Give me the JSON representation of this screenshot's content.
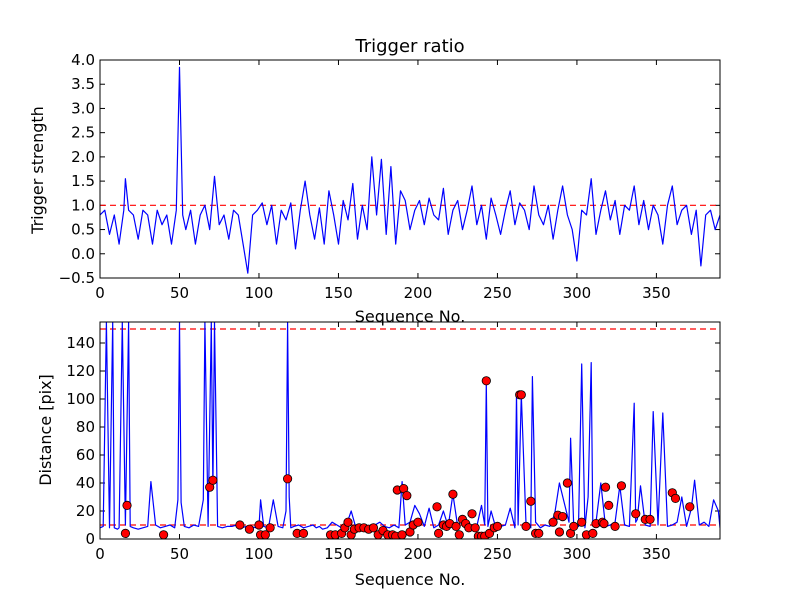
{
  "chart_data": [
    {
      "type": "line",
      "title": "Trigger ratio",
      "xlabel": "Sequence No.",
      "ylabel": "Trigger strength",
      "xlim": [
        0,
        390
      ],
      "ylim": [
        -0.5,
        4.0
      ],
      "xticks": [
        0,
        50,
        100,
        150,
        200,
        250,
        300,
        350
      ],
      "yticks": [
        -0.5,
        0.0,
        0.5,
        1.0,
        1.5,
        2.0,
        2.5,
        3.0,
        3.5,
        4.0
      ],
      "ytick_labels": [
        "−0.5",
        "0.0",
        "0.5",
        "1.0",
        "1.5",
        "2.0",
        "2.5",
        "3.0",
        "3.5",
        "4.0"
      ],
      "colors": {
        "line": "#0000ff",
        "threshold": "#ff0000"
      },
      "threshold": 1.0,
      "series": [
        {
          "name": "trigger strength",
          "x": [
            0,
            3,
            6,
            9,
            12,
            15,
            16,
            18,
            21,
            24,
            27,
            30,
            33,
            36,
            39,
            42,
            45,
            48,
            50,
            52,
            54,
            57,
            60,
            63,
            66,
            69,
            72,
            75,
            78,
            81,
            84,
            87,
            90,
            93,
            96,
            99,
            102,
            105,
            108,
            111,
            114,
            117,
            120,
            123,
            126,
            129,
            132,
            135,
            138,
            141,
            144,
            147,
            150,
            153,
            156,
            159,
            162,
            165,
            168,
            171,
            174,
            177,
            180,
            183,
            186,
            189,
            192,
            195,
            198,
            201,
            204,
            207,
            210,
            213,
            216,
            219,
            222,
            225,
            228,
            231,
            234,
            237,
            240,
            243,
            246,
            249,
            252,
            255,
            258,
            261,
            264,
            267,
            270,
            273,
            276,
            279,
            282,
            285,
            288,
            291,
            294,
            297,
            300,
            303,
            306,
            309,
            312,
            315,
            318,
            321,
            324,
            327,
            330,
            333,
            336,
            339,
            342,
            345,
            348,
            351,
            354,
            357,
            360,
            363,
            366,
            369,
            372,
            375,
            378,
            381,
            384,
            387,
            390
          ],
          "y": [
            0.8,
            0.9,
            0.4,
            0.8,
            0.2,
            0.9,
            1.55,
            0.9,
            0.8,
            0.3,
            0.9,
            0.8,
            0.2,
            0.9,
            0.6,
            0.8,
            0.2,
            0.9,
            3.85,
            0.8,
            0.5,
            0.9,
            0.2,
            0.8,
            1.0,
            0.5,
            1.6,
            0.6,
            0.8,
            0.3,
            0.9,
            0.8,
            0.2,
            -0.4,
            0.8,
            0.9,
            1.05,
            0.6,
            1.0,
            0.2,
            0.9,
            0.7,
            1.05,
            0.1,
            0.9,
            1.5,
            0.8,
            0.3,
            0.95,
            0.2,
            1.3,
            0.8,
            0.2,
            1.1,
            0.7,
            1.45,
            0.3,
            1.0,
            0.5,
            2.0,
            0.8,
            1.95,
            0.4,
            1.8,
            0.2,
            1.3,
            1.1,
            0.5,
            0.9,
            1.1,
            0.6,
            1.15,
            0.8,
            0.7,
            1.35,
            0.4,
            0.9,
            1.1,
            0.5,
            0.9,
            1.4,
            0.6,
            1.0,
            0.3,
            1.15,
            0.8,
            0.4,
            0.9,
            1.3,
            0.6,
            1.05,
            0.9,
            0.5,
            1.4,
            0.8,
            0.6,
            1.0,
            0.3,
            0.9,
            1.4,
            0.8,
            0.5,
            -0.15,
            0.9,
            0.8,
            1.55,
            0.4,
            0.9,
            1.3,
            0.7,
            1.1,
            0.4,
            1.0,
            0.9,
            1.4,
            0.6,
            1.1,
            0.5,
            1.0,
            0.8,
            0.2,
            1.0,
            1.4,
            0.6,
            0.9,
            1.0,
            0.4,
            0.9,
            -0.25,
            0.8,
            0.9,
            0.5,
            0.8
          ]
        }
      ]
    },
    {
      "type": "line",
      "title": "",
      "xlabel": "Sequence No.",
      "ylabel": "Distance [pix]",
      "xlim": [
        0,
        390
      ],
      "ylim": [
        0,
        155
      ],
      "xticks": [
        0,
        50,
        100,
        150,
        200,
        250,
        300,
        350
      ],
      "yticks": [
        0,
        20,
        40,
        60,
        80,
        100,
        120,
        140
      ],
      "colors": {
        "line": "#0000ff",
        "threshold": "#ff0000",
        "marker": "#ff0000"
      },
      "thresholds": [
        150,
        10
      ],
      "series": [
        {
          "name": "distance",
          "x": [
            0,
            2,
            4,
            6,
            8,
            9,
            11,
            12,
            14,
            16,
            18,
            19,
            21,
            24,
            27,
            30,
            32,
            35,
            38,
            41,
            44,
            47,
            49,
            50,
            51,
            53,
            56,
            59,
            62,
            65,
            66,
            68,
            70,
            71,
            72,
            74,
            77,
            80,
            83,
            86,
            89,
            92,
            95,
            98,
            100,
            101,
            103,
            106,
            109,
            112,
            115,
            117,
            118,
            119,
            120,
            122,
            125,
            128,
            131,
            134,
            136,
            138,
            140,
            143,
            146,
            149,
            152,
            155,
            158,
            161,
            164,
            167,
            170,
            173,
            176,
            179,
            182,
            185,
            188,
            190,
            192,
            195,
            198,
            201,
            204,
            207,
            210,
            213,
            216,
            219,
            222,
            225,
            228,
            231,
            234,
            237,
            240,
            242,
            243,
            244,
            246,
            249,
            252,
            255,
            258,
            261,
            262,
            263,
            265,
            268,
            271,
            272,
            274,
            277,
            280,
            283,
            286,
            289,
            292,
            295,
            296,
            298,
            301,
            303,
            305,
            307,
            309,
            310,
            312,
            315,
            318,
            321,
            324,
            327,
            330,
            333,
            336,
            337,
            338,
            340,
            343,
            346,
            348,
            351,
            354,
            357,
            360,
            363,
            366,
            369,
            372,
            374,
            377,
            380,
            383,
            386,
            389,
            390
          ],
          "y": [
            8,
            9,
            155,
            8,
            155,
            8,
            7,
            8,
            155,
            10,
            155,
            9,
            8,
            7,
            8,
            9,
            41,
            10,
            8,
            9,
            10,
            8,
            28,
            155,
            26,
            9,
            8,
            10,
            9,
            28,
            155,
            9,
            155,
            36,
            155,
            9,
            8,
            9,
            9,
            10,
            8,
            9,
            9,
            8,
            9,
            28,
            9,
            8,
            28,
            9,
            8,
            20,
            155,
            30,
            8,
            9,
            10,
            8,
            9,
            10,
            8,
            9,
            7,
            8,
            12,
            10,
            8,
            10,
            20,
            8,
            10,
            9,
            8,
            10,
            12,
            9,
            8,
            10,
            8,
            41,
            10,
            12,
            24,
            18,
            9,
            22,
            8,
            10,
            20,
            9,
            32,
            9,
            14,
            11,
            8,
            9,
            24,
            10,
            112,
            9,
            20,
            8,
            9,
            10,
            22,
            8,
            104,
            10,
            103,
            9,
            8,
            116,
            12,
            8,
            10,
            9,
            18,
            40,
            26,
            12,
            72,
            10,
            9,
            125,
            8,
            30,
            126,
            10,
            12,
            40,
            9,
            10,
            12,
            38,
            10,
            9,
            97,
            12,
            14,
            38,
            10,
            9,
            91,
            10,
            90,
            9,
            10,
            12,
            30,
            9,
            22,
            42,
            10,
            12,
            9,
            28,
            20,
            8
          ]
        },
        {
          "name": "detections",
          "x": [
            16,
            17,
            40,
            69,
            71,
            88,
            94,
            100,
            101,
            104,
            107,
            118,
            124,
            128,
            145,
            148,
            152,
            154,
            156,
            158,
            160,
            163,
            166,
            169,
            172,
            175,
            178,
            181,
            184,
            186,
            187,
            190,
            191,
            193,
            195,
            197,
            200,
            212,
            213,
            216,
            218,
            220,
            222,
            224,
            226,
            228,
            230,
            232,
            234,
            236,
            238,
            240,
            242,
            243,
            245,
            248,
            250,
            264,
            265,
            268,
            271,
            274,
            276,
            285,
            288,
            289,
            291,
            294,
            296,
            298,
            303,
            306,
            310,
            312,
            316,
            317,
            318,
            320,
            324,
            328,
            337,
            343,
            346,
            360,
            362,
            371
          ],
          "y": [
            4,
            24,
            3,
            37,
            42,
            10,
            7,
            10,
            3,
            3,
            8,
            43,
            4,
            4,
            3,
            3,
            4,
            8,
            12,
            3,
            7,
            8,
            8,
            7,
            8,
            3,
            6,
            3,
            3,
            2,
            35,
            3,
            36,
            31,
            5,
            10,
            12,
            23,
            4,
            10,
            9,
            11,
            32,
            9,
            3,
            14,
            11,
            8,
            18,
            8,
            2,
            2,
            2,
            113,
            4,
            8,
            9,
            103,
            103,
            9,
            27,
            4,
            4,
            12,
            17,
            5,
            16,
            40,
            4,
            9,
            12,
            3,
            4,
            11,
            12,
            11,
            37,
            24,
            9,
            38,
            18,
            14,
            14,
            33,
            29,
            23
          ]
        }
      ]
    }
  ]
}
